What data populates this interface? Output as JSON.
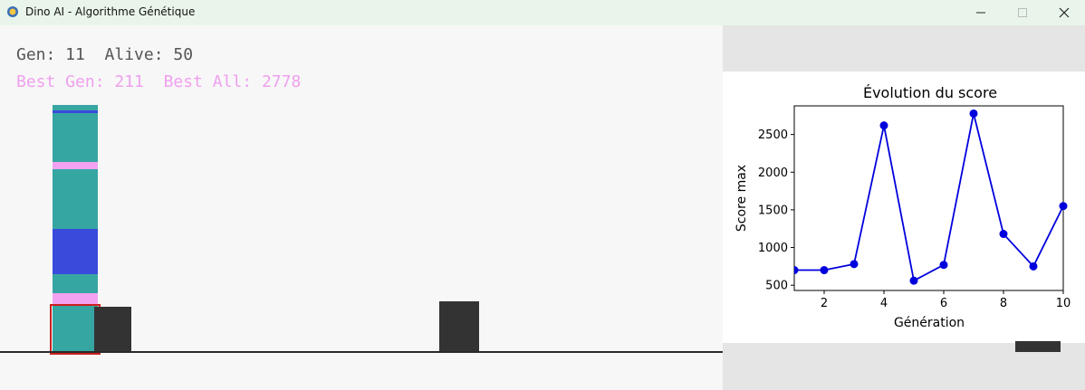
{
  "window": {
    "title": "Dino AI - Algorithme Génétique",
    "minimize_icon": "minimize-icon",
    "maximize_icon": "maximize-icon",
    "close_icon": "close-icon"
  },
  "stats": {
    "gen_text": "Gen: 11",
    "alive_text": "Alive: 50",
    "best_gen_text": "Best Gen: 211",
    "best_all_text": "Best All: 2778"
  },
  "colors": {
    "teal": "#36a6a2",
    "blue": "#3a4bdb",
    "pink": "#f3a2f1",
    "obstacle": "#333333",
    "selection_box": "#cc1f1f",
    "plot_line": "#0000dd"
  },
  "chart_data": {
    "type": "line",
    "title": "Évolution du score",
    "xlabel": "Génération",
    "ylabel": "Score max",
    "x": [
      1,
      2,
      3,
      4,
      5,
      6,
      7,
      8,
      9,
      10
    ],
    "series": [
      {
        "values": [
          700,
          700,
          780,
          2620,
          560,
          770,
          2778,
          1180,
          750,
          1550
        ]
      }
    ],
    "xlim": [
      1,
      10
    ],
    "ylim": [
      430,
      2880
    ],
    "xticks": [
      2,
      4,
      6,
      8,
      10
    ],
    "yticks": [
      500,
      1000,
      1500,
      2000,
      2500
    ],
    "grid": false
  }
}
